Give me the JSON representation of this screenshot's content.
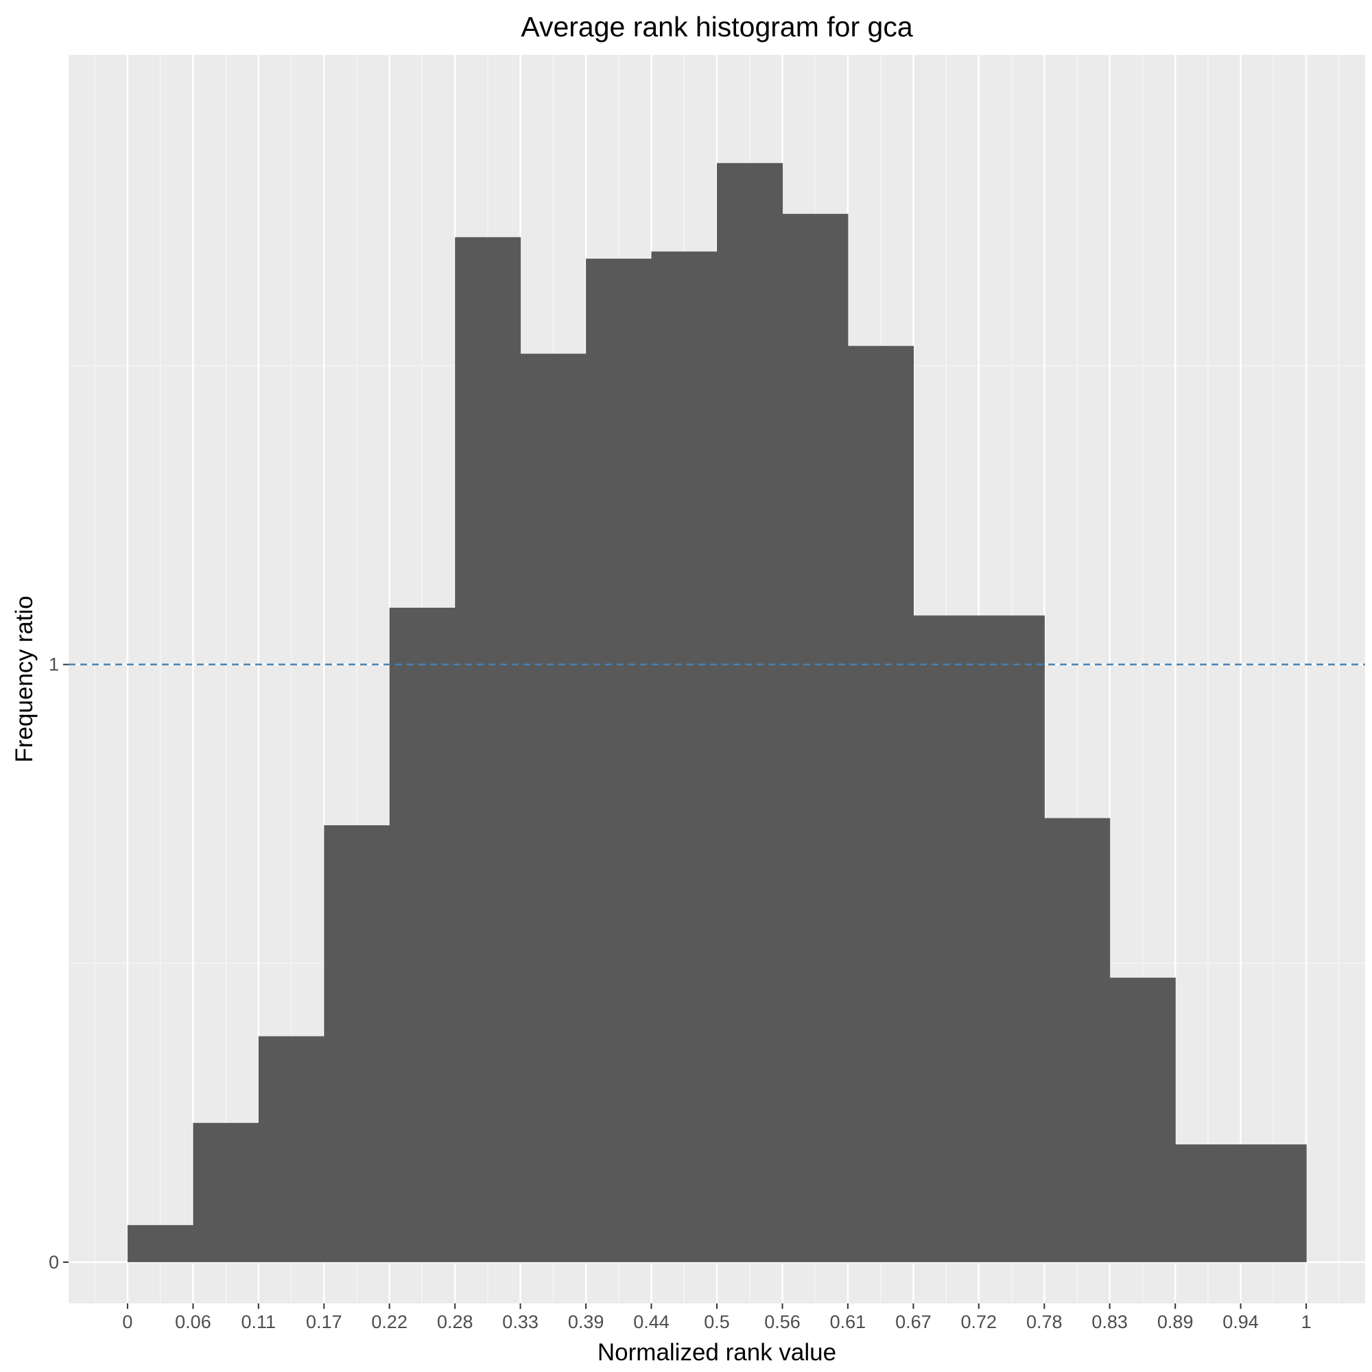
{
  "chart_data": {
    "type": "bar",
    "title": "Average rank histogram for gca",
    "xlabel": "Normalized rank value",
    "ylabel": "Frequency ratio",
    "x_ticks": [
      "0",
      "0.06",
      "0.11",
      "0.17",
      "0.22",
      "0.28",
      "0.33",
      "0.39",
      "0.44",
      "0.5",
      "0.56",
      "0.61",
      "0.67",
      "0.72",
      "0.78",
      "0.83",
      "0.89",
      "0.94",
      "1"
    ],
    "y_ticks": [
      "0",
      "1"
    ],
    "bin_edges": [
      0,
      0.0556,
      0.1111,
      0.1667,
      0.2222,
      0.2778,
      0.3333,
      0.3889,
      0.4444,
      0.5,
      0.5556,
      0.6111,
      0.6667,
      0.7222,
      0.7778,
      0.8333,
      0.8889,
      0.9444,
      1
    ],
    "values": [
      0.062,
      0.233,
      0.378,
      0.731,
      1.095,
      1.715,
      1.52,
      1.679,
      1.691,
      1.839,
      1.754,
      1.533,
      1.082,
      1.082,
      0.743,
      0.476,
      0.197,
      0.197
    ],
    "reference_line": {
      "y": 1,
      "style": "dashed",
      "color": "#4682b4"
    },
    "xlim": [
      -0.05,
      1.05
    ],
    "ylim": [
      -0.069,
      2.02
    ],
    "bar_color": "#595959",
    "panel_color": "#ebebeb",
    "grid": true
  }
}
